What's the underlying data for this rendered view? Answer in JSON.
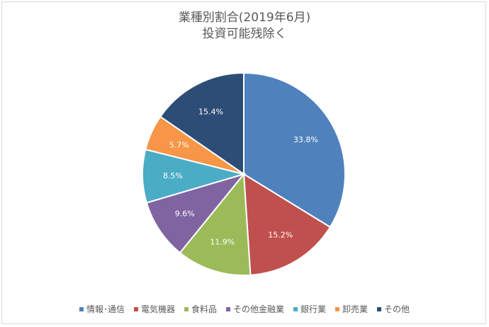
{
  "chart_data": {
    "type": "pie",
    "title": "業種別割合(2019年6月)",
    "subtitle": "投資可能残除く",
    "categories": [
      "情報･通信",
      "電気機器",
      "食料品",
      "その他金融業",
      "銀行業",
      "卸売業",
      "その他"
    ],
    "values": [
      33.8,
      15.2,
      11.9,
      9.6,
      8.5,
      5.7,
      15.4
    ],
    "labels": [
      "33.8%",
      "15.2%",
      "11.9%",
      "9.6%",
      "8.5%",
      "5.7%",
      "15.4%"
    ],
    "colors": [
      "#4f81bd",
      "#c0504d",
      "#9bbb59",
      "#8064a2",
      "#4bacc6",
      "#f79646",
      "#2c4d75"
    ],
    "legend_position": "bottom"
  }
}
